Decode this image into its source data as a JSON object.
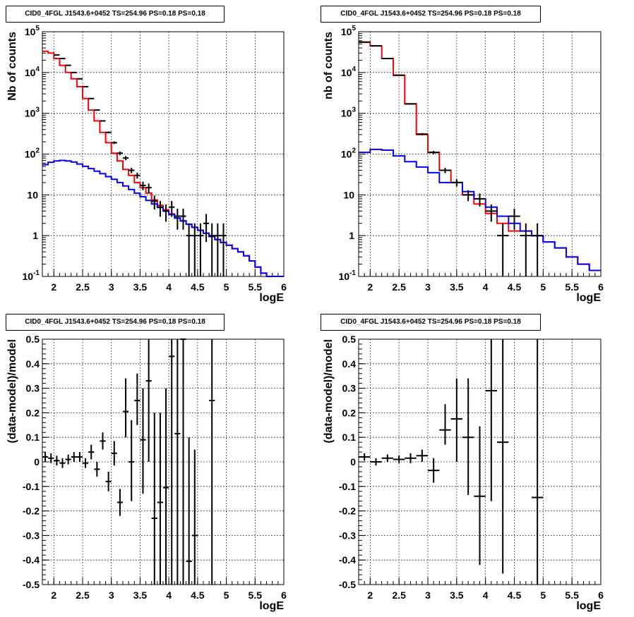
{
  "chart_data": [
    {
      "type": "line",
      "title": "CID0_4FGL J1543.6+0452 TS=254.96 PS=0.18 PS=0.18",
      "xlabel": "logE",
      "ylabel": "Nb of counts",
      "xlim": [
        1.8,
        6.0
      ],
      "ylim": [
        0.1,
        100000
      ],
      "yscale": "log",
      "grid": true,
      "x_ticks": [
        "2",
        "2.5",
        "3",
        "3.5",
        "4",
        "4.5",
        "5",
        "5.5",
        "6"
      ],
      "y_ticks": [
        "10^-1",
        "1",
        "10",
        "10^2",
        "10^3",
        "10^4",
        "10^5"
      ],
      "bin_edges": [
        1.8,
        1.9,
        2.0,
        2.1,
        2.2,
        2.3,
        2.4,
        2.5,
        2.6,
        2.7,
        2.8,
        2.9,
        3.0,
        3.1,
        3.2,
        3.3,
        3.4,
        3.5,
        3.6,
        3.7,
        3.8,
        3.9,
        4.0,
        4.1,
        4.2,
        4.3,
        4.4,
        4.5,
        4.6,
        4.7,
        4.8,
        4.9,
        5.0,
        5.1,
        5.2,
        5.3,
        5.4,
        5.5,
        5.6,
        5.7,
        5.8,
        5.9,
        6.0
      ],
      "series": [
        {
          "color": "#ff0000",
          "drawstyle": "steps",
          "values": [
            33000,
            30000,
            22000,
            15000,
            10000,
            7000,
            4500,
            2300,
            1200,
            650,
            340,
            190,
            105,
            68,
            42,
            30,
            20,
            15,
            11,
            7.5,
            5.5,
            4.3,
            3.4,
            2.7,
            2.3,
            1.9,
            1.6,
            1.35,
            1.15,
            0.95,
            0.8,
            0.68,
            0.58,
            0.48,
            0.4,
            0.32,
            0.24,
            0.17,
            0.12,
            0.1,
            0.1,
            0.1
          ]
        },
        {
          "color": "#0000ff",
          "drawstyle": "steps",
          "values": [
            55,
            63,
            68,
            70,
            68,
            64,
            57,
            50,
            44,
            38,
            33,
            28,
            24,
            20,
            16.5,
            13.5,
            11,
            9,
            7.3,
            6,
            4.9,
            4.0,
            3.3,
            2.7,
            2.3,
            1.9,
            1.6,
            1.35,
            1.15,
            0.95,
            0.8,
            0.68,
            0.58,
            0.48,
            0.4,
            0.32,
            0.24,
            0.17,
            0.12,
            0.1,
            0.1,
            0.1
          ]
        },
        {
          "color": "#000000",
          "drawstyle": "errorbars",
          "x": [
            2.05,
            2.15,
            2.25,
            2.35,
            2.45,
            2.55,
            2.65,
            2.75,
            2.85,
            2.95,
            3.05,
            3.15,
            3.25,
            3.35,
            3.45,
            3.55,
            3.65,
            3.75,
            3.85,
            3.95,
            4.05,
            4.15,
            4.25,
            4.35,
            4.45,
            4.55,
            4.65,
            4.75,
            4.85,
            4.95
          ],
          "values": [
            27000,
            22000,
            15000,
            10000,
            7000,
            4500,
            2300,
            1200,
            650,
            340,
            190,
            105,
            80,
            40,
            30,
            17,
            15,
            7,
            5,
            4,
            5,
            3,
            3,
            1,
            1,
            1,
            2,
            1,
            1,
            1
          ],
          "low": [
            26400,
            21600,
            14700,
            9800,
            6900,
            4400,
            2250,
            1170,
            625,
            322,
            176,
            95,
            71,
            34,
            25,
            13,
            11,
            4.4,
            2.9,
            2.2,
            2.9,
            1.4,
            1.4,
            0.05,
            0.05,
            0.05,
            0.7,
            0.05,
            0.05,
            0.05
          ],
          "high": [
            27600,
            22400,
            15300,
            10200,
            7100,
            4600,
            2350,
            1230,
            675,
            358,
            204,
            115,
            89,
            46,
            35,
            21,
            19,
            9.6,
            7.1,
            5.8,
            7.1,
            4.6,
            4.6,
            2.0,
            2.0,
            2.0,
            3.4,
            2.0,
            2.0,
            2.0
          ]
        }
      ]
    },
    {
      "type": "line",
      "title": "CID0_4FGL J1543.6+0452 TS=254.96 PS=0.18 PS=0.18",
      "xlabel": "logE",
      "ylabel": "nb of counts",
      "xlim": [
        1.8,
        6.0
      ],
      "ylim": [
        0.1,
        100000
      ],
      "yscale": "log",
      "grid": true,
      "x_ticks": [
        "2",
        "2.5",
        "3",
        "3.5",
        "4",
        "4.5",
        "5",
        "5.5",
        "6"
      ],
      "y_ticks": [
        "10^-1",
        "1",
        "10",
        "10^2",
        "10^3",
        "10^4",
        "10^5"
      ],
      "bin_edges": [
        1.8,
        2.0,
        2.2,
        2.4,
        2.6,
        2.8,
        3.0,
        3.2,
        3.4,
        3.6,
        3.8,
        4.0,
        4.2,
        4.4,
        4.6,
        4.8,
        5.0,
        5.2,
        5.4,
        5.6,
        5.8,
        6.0
      ],
      "series": [
        {
          "color": "#ff0000",
          "drawstyle": "steps",
          "values": [
            55000,
            45000,
            22000,
            8500,
            1700,
            300,
            110,
            40,
            20,
            10,
            6,
            3.5,
            2.0,
            1.3,
            1.3,
            1.0,
            0.7,
            0.5,
            0.3,
            0.2,
            0.14
          ]
        },
        {
          "color": "#0000ff",
          "drawstyle": "steps",
          "values": [
            110,
            130,
            125,
            90,
            65,
            48,
            35,
            20,
            20,
            12,
            8,
            5,
            3,
            2,
            1.3,
            1.0,
            0.7,
            0.5,
            0.3,
            0.2,
            0.14
          ]
        },
        {
          "color": "#000000",
          "drawstyle": "errorbars",
          "x": [
            1.9,
            2.1,
            2.3,
            2.5,
            2.7,
            2.9,
            3.1,
            3.3,
            3.5,
            3.7,
            3.9,
            4.1,
            4.3,
            4.5,
            4.7,
            4.9
          ],
          "values": [
            56000,
            45000,
            22000,
            8600,
            1700,
            310,
            110,
            40,
            20,
            10,
            8,
            4,
            1,
            3,
            1,
            1
          ],
          "low": [
            55500,
            44600,
            21700,
            8400,
            1660,
            292,
            100,
            34,
            16,
            7,
            5.2,
            2.2,
            0.05,
            1.4,
            0.05,
            0.05
          ],
          "high": [
            56500,
            45400,
            22300,
            8800,
            1740,
            328,
            120,
            46,
            24,
            13,
            10.8,
            5.8,
            2.0,
            4.6,
            2.0,
            2.0
          ]
        }
      ]
    },
    {
      "type": "scatter",
      "title": "CID0_4FGL J1543.6+0452 TS=254.96 PS=0.18 PS=0.18",
      "xlabel": "logE",
      "ylabel": "(data-model)/model",
      "xlim": [
        1.8,
        6.0
      ],
      "ylim": [
        -0.5,
        0.5
      ],
      "grid": true,
      "x_ticks": [
        "2",
        "2.5",
        "3",
        "3.5",
        "4",
        "4.5",
        "5",
        "5.5",
        "6"
      ],
      "y_ticks": [
        "-0.5",
        "-0.4",
        "-0.3",
        "-0.2",
        "-0.1",
        "0",
        "0.1",
        "0.2",
        "0.3",
        "0.4",
        "0.5"
      ],
      "series": [
        {
          "color": "#000000",
          "drawstyle": "errorbars",
          "xerr": 0.05,
          "x": [
            1.85,
            1.95,
            2.05,
            2.15,
            2.25,
            2.35,
            2.45,
            2.55,
            2.65,
            2.75,
            2.85,
            2.95,
            3.05,
            3.15,
            3.25,
            3.35,
            3.45,
            3.55,
            3.65,
            3.75,
            3.85,
            3.95,
            4.05,
            4.15,
            4.25,
            4.35,
            4.45,
            4.75
          ],
          "values": [
            0.02,
            0.015,
            0.005,
            -0.005,
            0.01,
            0.02,
            0.02,
            -0.005,
            0.04,
            -0.03,
            0.085,
            -0.08,
            0.035,
            -0.165,
            0.205,
            0.0,
            0.25,
            0.09,
            0.33,
            -0.23,
            -0.165,
            -0.105,
            0.43,
            0.115,
            0.5,
            -0.405,
            -0.3,
            0.25
          ],
          "low": [
            0.0,
            -0.005,
            -0.015,
            -0.025,
            -0.01,
            0.0,
            0.0,
            -0.025,
            0.01,
            -0.06,
            0.05,
            -0.12,
            -0.015,
            -0.22,
            0.1,
            -0.16,
            0.15,
            -0.13,
            0.0,
            -0.5,
            -0.5,
            -0.5,
            -0.5,
            -0.5,
            -0.5,
            -0.5,
            -0.5,
            -0.5
          ],
          "high": [
            0.04,
            0.035,
            0.025,
            0.015,
            0.03,
            0.04,
            0.04,
            0.015,
            0.07,
            0.0,
            0.12,
            -0.04,
            0.085,
            -0.11,
            0.34,
            0.17,
            0.36,
            0.3,
            0.5,
            0.2,
            0.2,
            0.3,
            0.5,
            0.5,
            0.5,
            0.1,
            0.05,
            0.5
          ]
        }
      ]
    },
    {
      "type": "scatter",
      "title": "CID0_4FGL J1543.6+0452 TS=254.96 PS=0.18 PS=0.18",
      "xlabel": "logE",
      "ylabel": "(data-model)/model",
      "xlim": [
        1.8,
        6.0
      ],
      "ylim": [
        -0.5,
        0.5
      ],
      "grid": true,
      "x_ticks": [
        "2",
        "2.5",
        "3",
        "3.5",
        "4",
        "4.5",
        "5",
        "5.5",
        "6"
      ],
      "y_ticks": [
        "-0.5",
        "-0.4",
        "-0.3",
        "-0.2",
        "-0.1",
        "0",
        "0.1",
        "0.2",
        "0.3",
        "0.4",
        "0.5"
      ],
      "series": [
        {
          "color": "#000000",
          "drawstyle": "errorbars",
          "xerr": 0.1,
          "x": [
            1.9,
            2.1,
            2.3,
            2.5,
            2.7,
            2.9,
            3.1,
            3.3,
            3.5,
            3.7,
            3.9,
            4.1,
            4.3,
            4.9
          ],
          "values": [
            0.02,
            0.0,
            0.015,
            0.01,
            0.015,
            0.025,
            -0.035,
            0.13,
            0.175,
            0.1,
            -0.14,
            0.29,
            0.08,
            -0.145
          ],
          "low": [
            0.005,
            -0.015,
            0.0,
            -0.005,
            -0.005,
            0.0,
            -0.085,
            0.07,
            0.0,
            -0.135,
            -0.42,
            -0.16,
            -0.455,
            -0.5
          ],
          "high": [
            0.035,
            0.015,
            0.03,
            0.025,
            0.035,
            0.05,
            0.015,
            0.235,
            0.34,
            0.34,
            0.145,
            0.5,
            0.5,
            0.5
          ]
        }
      ]
    }
  ]
}
